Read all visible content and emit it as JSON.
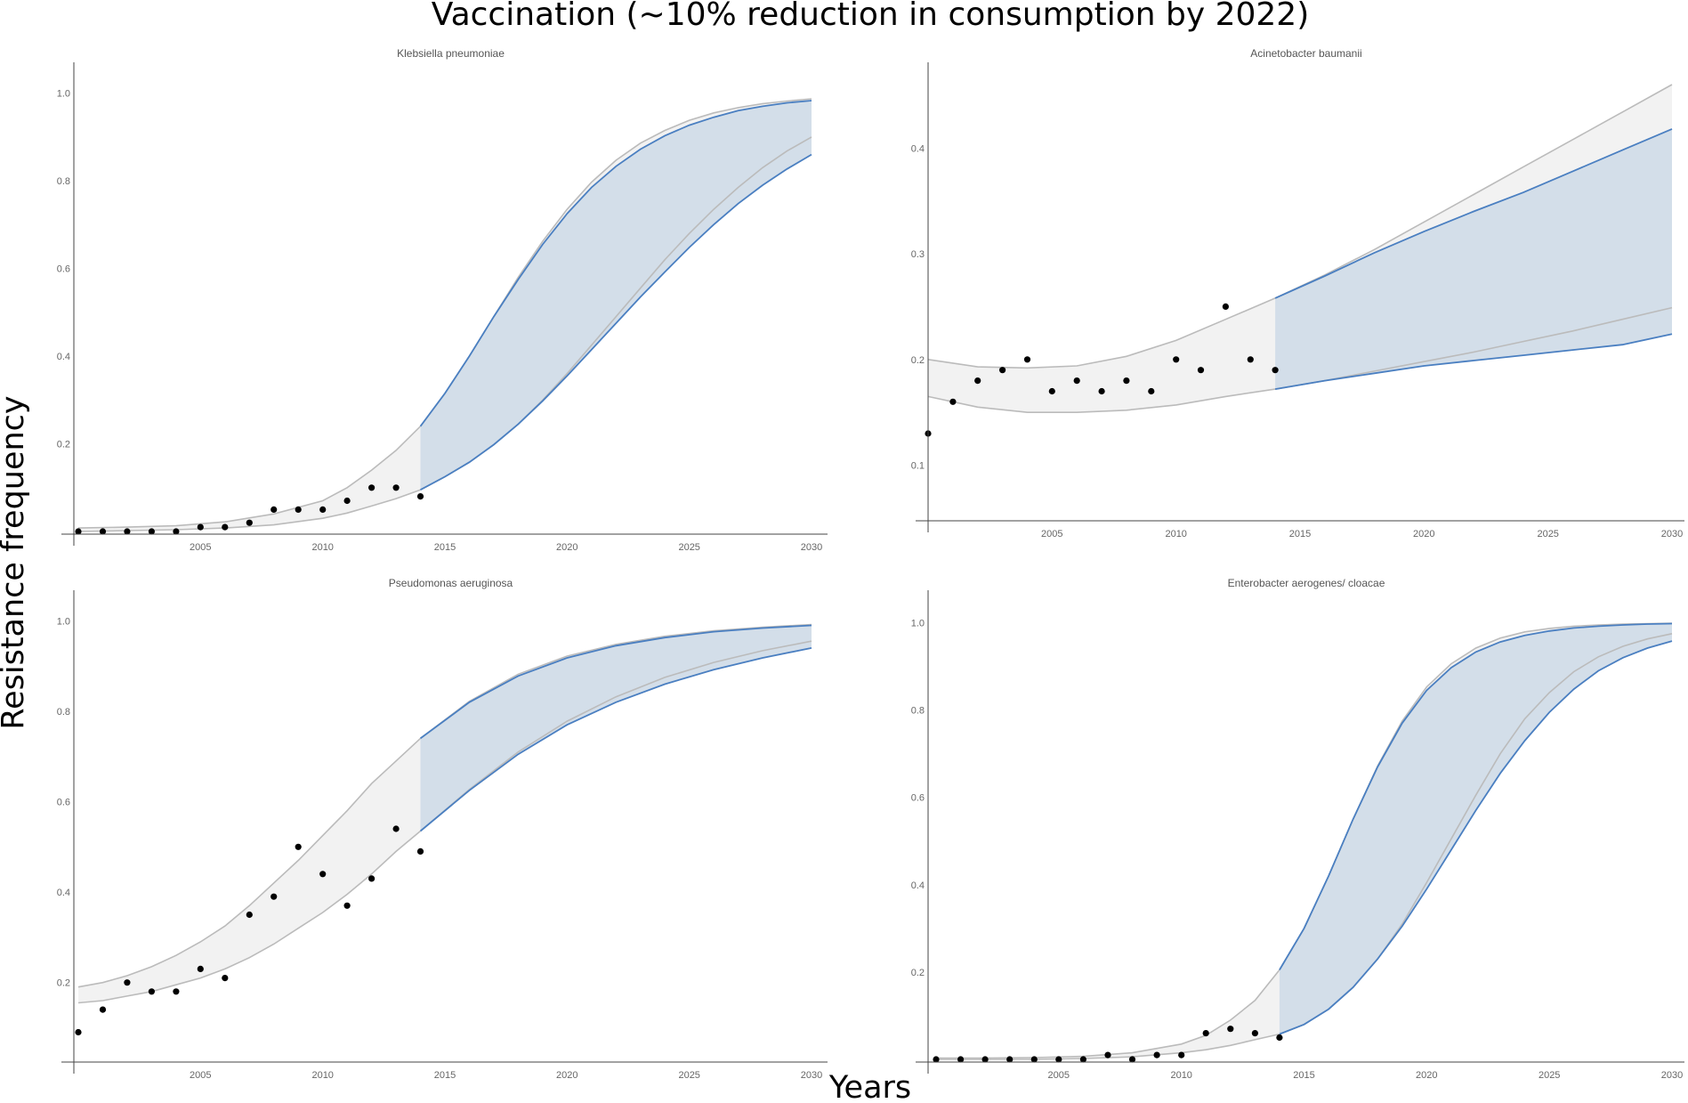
{
  "figure": {
    "title": "Vaccination (~10% reduction in consumption by 2022)",
    "xlabel": "Years",
    "ylabel": "Resistance frequency"
  },
  "colors": {
    "observed_points": "#000000",
    "historical_band_fill": "#f2f2f2",
    "historical_band_line": "#bbbbbb",
    "projection_band_fill": "#d1dce8",
    "projection_line": "#4a7fc1"
  },
  "chart_data": [
    {
      "type": "scatter",
      "title": "Klebsiella  pneumoniae",
      "xlim": [
        2000,
        2030
      ],
      "ylim": [
        0,
        1.05
      ],
      "xticks": [
        2005,
        2010,
        2015,
        2020,
        2025,
        2030
      ],
      "yticks": [
        0.2,
        0.4,
        0.6,
        0.8,
        1.0
      ],
      "observed": {
        "x": [
          2000,
          2001,
          2002,
          2003,
          2004,
          2005,
          2006,
          2007,
          2008,
          2009,
          2010,
          2011,
          2012,
          2013,
          2014
        ],
        "y": [
          0.0,
          0.0,
          0.0,
          0.0,
          0.0,
          0.01,
          0.01,
          0.02,
          0.05,
          0.05,
          0.05,
          0.07,
          0.1,
          0.1,
          0.08
        ]
      },
      "historical_band": {
        "x": [
          2000,
          2002,
          2004,
          2006,
          2008,
          2010,
          2011,
          2012,
          2013,
          2014
        ],
        "lower": [
          0.0,
          0.002,
          0.004,
          0.008,
          0.015,
          0.03,
          0.042,
          0.058,
          0.075,
          0.095
        ],
        "upper": [
          0.008,
          0.01,
          0.013,
          0.022,
          0.04,
          0.07,
          0.1,
          0.14,
          0.185,
          0.24
        ]
      },
      "projection_band": {
        "x": [
          2014,
          2015,
          2016,
          2017,
          2018,
          2019,
          2020,
          2021,
          2022,
          2023,
          2024,
          2025,
          2026,
          2027,
          2028,
          2029,
          2030
        ],
        "lower": [
          0.095,
          0.125,
          0.158,
          0.198,
          0.245,
          0.298,
          0.355,
          0.415,
          0.475,
          0.535,
          0.592,
          0.648,
          0.7,
          0.748,
          0.79,
          0.827,
          0.86
        ],
        "upper": [
          0.24,
          0.315,
          0.4,
          0.49,
          0.575,
          0.655,
          0.725,
          0.785,
          0.833,
          0.872,
          0.903,
          0.927,
          0.945,
          0.96,
          0.97,
          0.978,
          0.983
        ],
        "lower_gray": [
          0.095,
          0.125,
          0.158,
          0.198,
          0.245,
          0.3,
          0.36,
          0.425,
          0.49,
          0.555,
          0.62,
          0.68,
          0.735,
          0.785,
          0.83,
          0.868,
          0.9
        ],
        "upper_gray": [
          0.24,
          0.315,
          0.4,
          0.49,
          0.58,
          0.662,
          0.735,
          0.797,
          0.847,
          0.886,
          0.915,
          0.938,
          0.955,
          0.967,
          0.976,
          0.982,
          0.987
        ]
      }
    },
    {
      "type": "scatter",
      "title": "Acinetobacter  baumanii",
      "xlim": [
        2000,
        2030
      ],
      "ylim": [
        0.05,
        0.46
      ],
      "xticks": [
        2005,
        2010,
        2015,
        2020,
        2025,
        2030
      ],
      "yticks": [
        0.1,
        0.2,
        0.3,
        0.4
      ],
      "observed": {
        "x": [
          2000,
          2001,
          2002,
          2003,
          2004,
          2005,
          2006,
          2007,
          2008,
          2009,
          2010,
          2011,
          2012,
          2013,
          2014
        ],
        "y": [
          0.13,
          0.16,
          0.18,
          0.19,
          0.2,
          0.17,
          0.18,
          0.17,
          0.18,
          0.17,
          0.2,
          0.19,
          0.25,
          0.2,
          0.19
        ]
      },
      "historical_band": {
        "x": [
          2000,
          2002,
          2004,
          2006,
          2008,
          2010,
          2012,
          2014
        ],
        "lower": [
          0.165,
          0.155,
          0.15,
          0.15,
          0.152,
          0.157,
          0.165,
          0.172
        ],
        "upper": [
          0.2,
          0.193,
          0.192,
          0.194,
          0.203,
          0.218,
          0.238,
          0.258
        ]
      },
      "projection_band": {
        "x": [
          2014,
          2016,
          2018,
          2020,
          2022,
          2024,
          2026,
          2028,
          2030
        ],
        "lower": [
          0.172,
          0.18,
          0.187,
          0.194,
          0.199,
          0.204,
          0.209,
          0.214,
          0.224
        ],
        "upper": [
          0.258,
          0.279,
          0.301,
          0.321,
          0.34,
          0.358,
          0.378,
          0.398,
          0.418
        ],
        "lower_gray": [
          0.172,
          0.18,
          0.189,
          0.198,
          0.207,
          0.217,
          0.227,
          0.238,
          0.249
        ],
        "upper_gray": [
          0.258,
          0.28,
          0.304,
          0.33,
          0.356,
          0.382,
          0.408,
          0.434,
          0.46
        ]
      }
    },
    {
      "type": "scatter",
      "title": "Pseudomonas  aeruginosa",
      "xlim": [
        2000,
        2030
      ],
      "ylim": [
        0.03,
        1.05
      ],
      "xticks": [
        2005,
        2010,
        2015,
        2020,
        2025,
        2030
      ],
      "yticks": [
        0.2,
        0.4,
        0.6,
        0.8,
        1.0
      ],
      "observed": {
        "x": [
          2000,
          2001,
          2002,
          2003,
          2004,
          2005,
          2006,
          2007,
          2008,
          2009,
          2010,
          2011,
          2012,
          2013,
          2014
        ],
        "y": [
          0.09,
          0.14,
          0.2,
          0.18,
          0.18,
          0.23,
          0.21,
          0.35,
          0.39,
          0.5,
          0.44,
          0.37,
          0.43,
          0.54,
          0.49
        ]
      },
      "historical_band": {
        "x": [
          2000,
          2001,
          2002,
          2003,
          2004,
          2005,
          2006,
          2007,
          2008,
          2009,
          2010,
          2011,
          2012,
          2013,
          2014
        ],
        "lower": [
          0.155,
          0.16,
          0.17,
          0.18,
          0.195,
          0.21,
          0.23,
          0.255,
          0.285,
          0.32,
          0.355,
          0.395,
          0.44,
          0.49,
          0.535
        ],
        "upper": [
          0.19,
          0.2,
          0.215,
          0.235,
          0.26,
          0.29,
          0.325,
          0.37,
          0.42,
          0.47,
          0.525,
          0.58,
          0.64,
          0.69,
          0.74
        ]
      },
      "projection_band": {
        "x": [
          2014,
          2016,
          2018,
          2020,
          2022,
          2024,
          2026,
          2028,
          2030
        ],
        "lower": [
          0.535,
          0.625,
          0.705,
          0.77,
          0.82,
          0.86,
          0.892,
          0.918,
          0.94
        ],
        "upper": [
          0.74,
          0.82,
          0.878,
          0.918,
          0.945,
          0.963,
          0.976,
          0.984,
          0.99
        ],
        "lower_gray": [
          0.535,
          0.627,
          0.71,
          0.778,
          0.832,
          0.875,
          0.908,
          0.934,
          0.955
        ],
        "upper_gray": [
          0.74,
          0.822,
          0.882,
          0.922,
          0.948,
          0.966,
          0.978,
          0.986,
          0.992
        ]
      }
    },
    {
      "type": "scatter",
      "title": "Enterobacter  aerogenes/ cloacae",
      "xlim": [
        2000,
        2030
      ],
      "ylim": [
        0,
        1.05
      ],
      "xticks": [
        2005,
        2010,
        2015,
        2020,
        2025,
        2030
      ],
      "yticks": [
        0.2,
        0.4,
        0.6,
        0.8,
        1.0
      ],
      "observed": {
        "x": [
          2000,
          2001,
          2002,
          2003,
          2004,
          2005,
          2006,
          2007,
          2008,
          2009,
          2010,
          2011,
          2012,
          2013,
          2014
        ],
        "y": [
          0.0,
          0.0,
          0.0,
          0.0,
          0.0,
          0.0,
          0.0,
          0.01,
          0.0,
          0.01,
          0.01,
          0.06,
          0.07,
          0.06,
          0.05
        ]
      },
      "historical_band": {
        "x": [
          2000,
          2002,
          2004,
          2006,
          2008,
          2010,
          2011,
          2012,
          2013,
          2014
        ],
        "lower": [
          0.0,
          0.0,
          0.0,
          0.002,
          0.006,
          0.015,
          0.022,
          0.032,
          0.045,
          0.058
        ],
        "upper": [
          0.003,
          0.003,
          0.004,
          0.007,
          0.015,
          0.035,
          0.055,
          0.09,
          0.135,
          0.205
        ]
      },
      "projection_band": {
        "x": [
          2014,
          2015,
          2016,
          2017,
          2018,
          2019,
          2020,
          2021,
          2022,
          2023,
          2024,
          2025,
          2026,
          2027,
          2028,
          2029,
          2030
        ],
        "lower": [
          0.058,
          0.08,
          0.115,
          0.165,
          0.23,
          0.305,
          0.39,
          0.48,
          0.57,
          0.655,
          0.73,
          0.795,
          0.848,
          0.89,
          0.92,
          0.942,
          0.958
        ],
        "upper": [
          0.205,
          0.3,
          0.42,
          0.55,
          0.67,
          0.77,
          0.845,
          0.897,
          0.933,
          0.956,
          0.971,
          0.981,
          0.988,
          0.992,
          0.995,
          0.997,
          0.998
        ],
        "lower_gray": [
          0.058,
          0.08,
          0.115,
          0.165,
          0.23,
          0.31,
          0.405,
          0.505,
          0.605,
          0.7,
          0.78,
          0.84,
          0.888,
          0.922,
          0.946,
          0.963,
          0.975
        ],
        "upper_gray": [
          0.205,
          0.3,
          0.42,
          0.55,
          0.672,
          0.775,
          0.853,
          0.906,
          0.942,
          0.965,
          0.979,
          0.987,
          0.992,
          0.995,
          0.997,
          0.998,
          0.999
        ]
      }
    }
  ]
}
